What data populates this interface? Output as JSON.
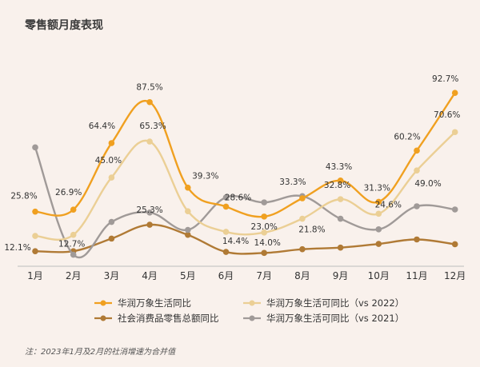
{
  "chart_data": {
    "type": "line",
    "title": "零售额月度表现",
    "categories": [
      "1月",
      "2月",
      "3月",
      "4月",
      "5月",
      "6月",
      "7月",
      "8月",
      "9月",
      "10月",
      "11月",
      "12月"
    ],
    "ylim": [
      -5,
      100
    ],
    "grid": false,
    "legend_position": "bottom",
    "series": [
      {
        "name": "华润万象生活同比",
        "color": "#f0a020",
        "values": [
          25.8,
          26.9,
          64.4,
          87.5,
          39.3,
          28.6,
          23.0,
          33.3,
          43.3,
          31.3,
          60.2,
          92.7
        ],
        "labels": [
          "25.8%",
          "26.9%",
          "64.4%",
          "87.5%",
          "39.3%",
          "28.6%",
          "23.0%",
          "33.3%",
          "43.3%",
          "31.3%",
          "60.2%",
          "92.7%"
        ]
      },
      {
        "name": "华润万象生活可同比（vs 2022）",
        "color": "#ebcf95",
        "values": [
          12.1,
          12.7,
          45.0,
          65.3,
          26.0,
          14.4,
          14.0,
          21.8,
          32.8,
          24.6,
          49.0,
          70.6
        ],
        "labels": [
          "12.1%",
          "12.7%",
          "45.0%",
          "65.3%",
          "",
          "14.4%",
          "14.0%",
          "21.8%",
          "32.8%",
          "24.6%",
          "49.0%",
          "70.6%"
        ]
      },
      {
        "name": "社会消费品零售总额同比",
        "color": "#b07a35",
        "values": [
          3.5,
          3.5,
          10.6,
          18.4,
          12.7,
          3.1,
          2.5,
          4.6,
          5.5,
          7.6,
          10.1,
          7.4
        ],
        "labels": [
          "",
          "",
          "",
          "",
          "",
          "",
          "",
          "",
          "",
          "",
          "",
          ""
        ]
      },
      {
        "name": "华润万象生活可同比（vs 2021）",
        "color": "#a09a98",
        "values": [
          62.0,
          1.5,
          20.0,
          25.3,
          15.5,
          33.8,
          31.0,
          34.5,
          21.8,
          15.8,
          28.8,
          27.0
        ],
        "labels": [
          "",
          "",
          "",
          "25.3%",
          "",
          "",
          "",
          "",
          "",
          "",
          "",
          ""
        ]
      }
    ],
    "legend": [
      "华润万象生活同比",
      "华润万象生活可同比（vs 2022）",
      "社会消费品零售总额同比",
      "华润万象生活可同比（vs 2021）"
    ],
    "note": "注：2023年1月及2月的社消增速为合并值"
  }
}
